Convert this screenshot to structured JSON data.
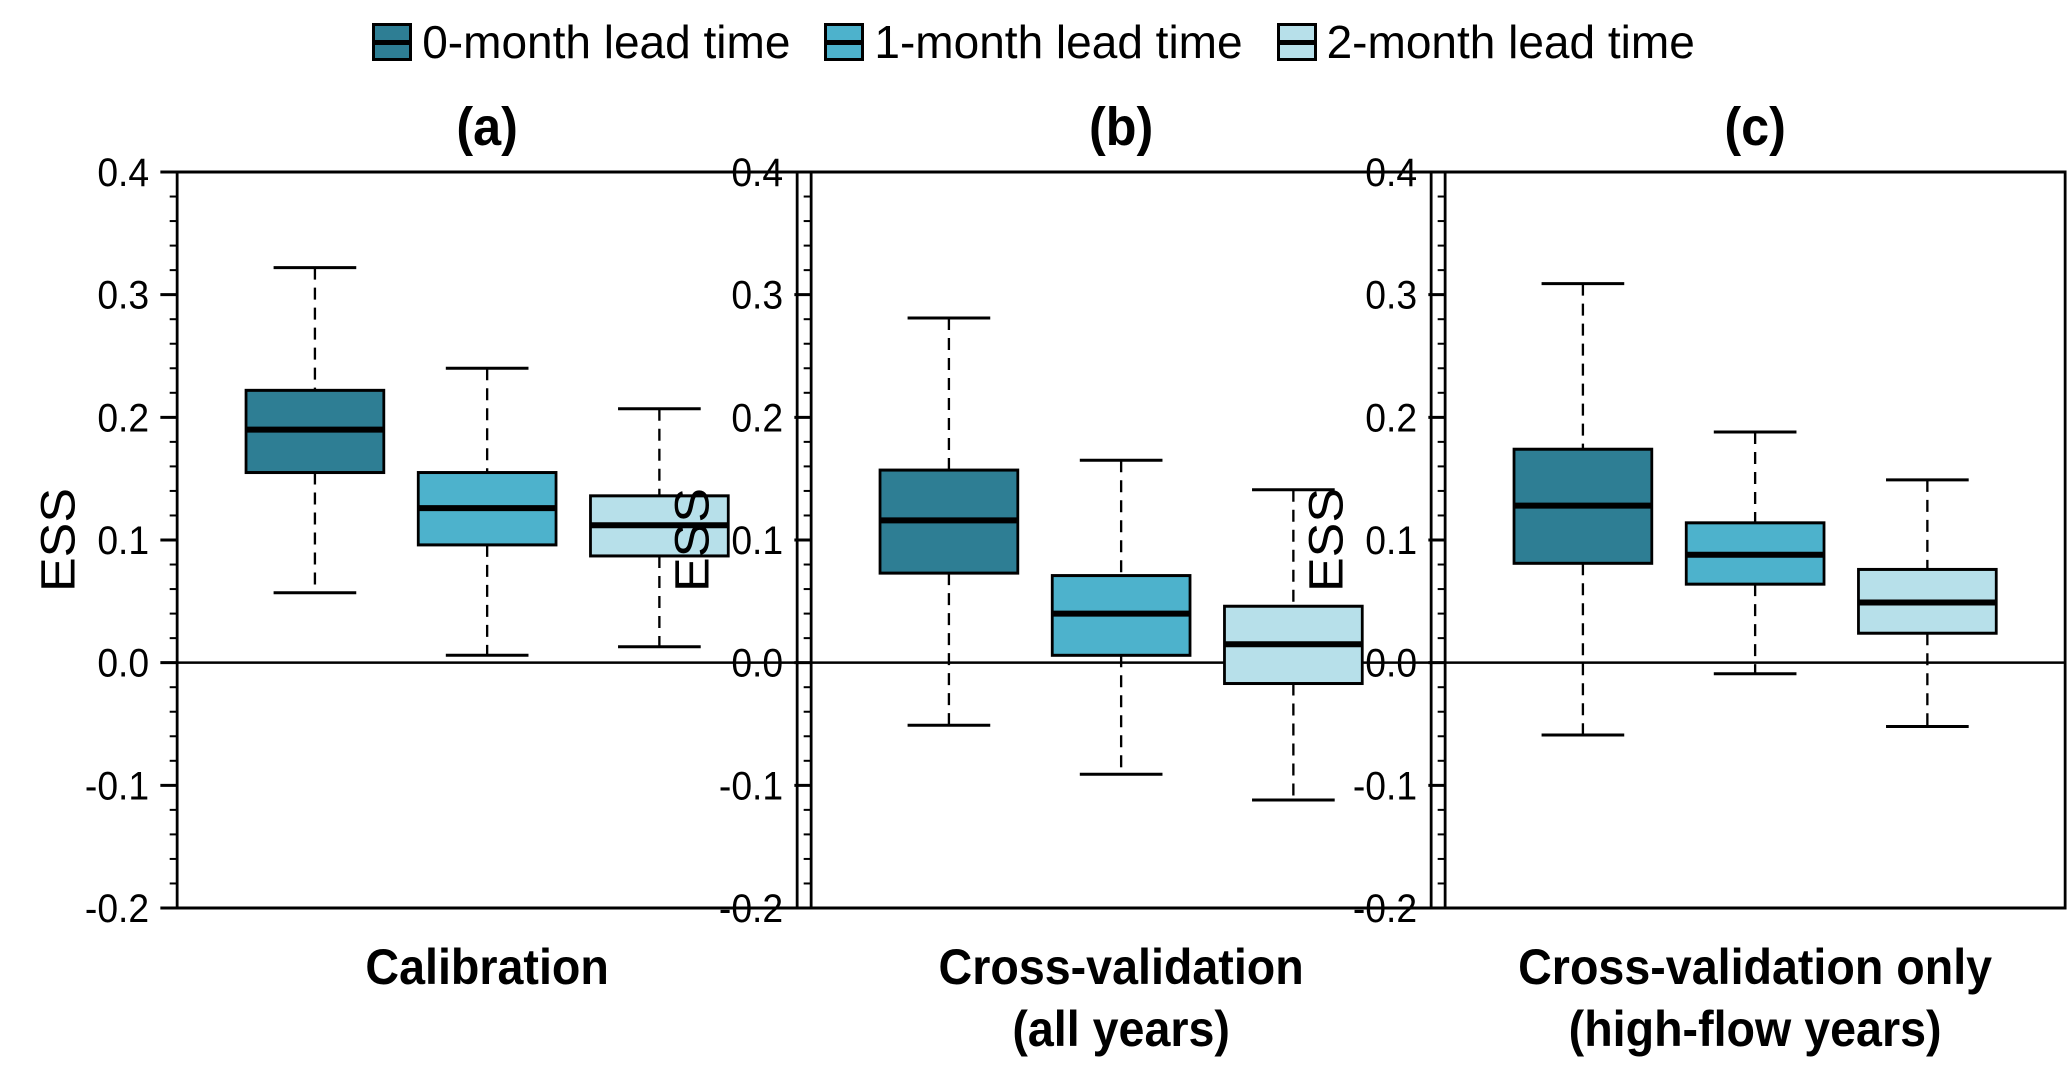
{
  "chart_data": {
    "type": "boxplot",
    "ylabel": "ESS",
    "ylim": [
      -0.2,
      0.4
    ],
    "yticks": [
      -0.2,
      -0.1,
      0.0,
      0.1,
      0.2,
      0.3,
      0.4
    ],
    "ytick_labels": [
      "-0.2",
      "-0.1",
      "0.0",
      "0.1",
      "0.2",
      "0.3",
      "0.4"
    ],
    "reference_line": 0.0,
    "series": [
      {
        "name": "0-month lead time",
        "color": "#2e7e94"
      },
      {
        "name": "1-month lead time",
        "color": "#4db2cc"
      },
      {
        "name": "2-month lead time",
        "color": "#b7e0ea"
      }
    ],
    "panels": [
      {
        "title": "(a)",
        "xlabel_lines": [
          "Calibration"
        ],
        "boxes": [
          {
            "series": "0-month lead time",
            "min": 0.057,
            "q1": 0.155,
            "median": 0.19,
            "q3": 0.222,
            "max": 0.322
          },
          {
            "series": "1-month lead time",
            "min": 0.006,
            "q1": 0.096,
            "median": 0.126,
            "q3": 0.155,
            "max": 0.24
          },
          {
            "series": "2-month lead time",
            "min": 0.013,
            "q1": 0.087,
            "median": 0.112,
            "q3": 0.136,
            "max": 0.207
          }
        ]
      },
      {
        "title": "(b)",
        "xlabel_lines": [
          "Cross-validation",
          "(all years)"
        ],
        "boxes": [
          {
            "series": "0-month lead time",
            "min": -0.051,
            "q1": 0.073,
            "median": 0.116,
            "q3": 0.157,
            "max": 0.281
          },
          {
            "series": "1-month lead time",
            "min": -0.091,
            "q1": 0.006,
            "median": 0.04,
            "q3": 0.071,
            "max": 0.165
          },
          {
            "series": "2-month lead time",
            "min": -0.112,
            "q1": -0.017,
            "median": 0.015,
            "q3": 0.046,
            "max": 0.141
          }
        ]
      },
      {
        "title": "(c)",
        "xlabel_lines": [
          "Cross-validation only",
          "(high-flow years)"
        ],
        "boxes": [
          {
            "series": "0-month lead time",
            "min": -0.059,
            "q1": 0.081,
            "median": 0.128,
            "q3": 0.174,
            "max": 0.309
          },
          {
            "series": "1-month lead time",
            "min": -0.009,
            "q1": 0.064,
            "median": 0.088,
            "q3": 0.114,
            "max": 0.188
          },
          {
            "series": "2-month lead time",
            "min": -0.052,
            "q1": 0.024,
            "median": 0.049,
            "q3": 0.076,
            "max": 0.149
          }
        ]
      }
    ]
  }
}
